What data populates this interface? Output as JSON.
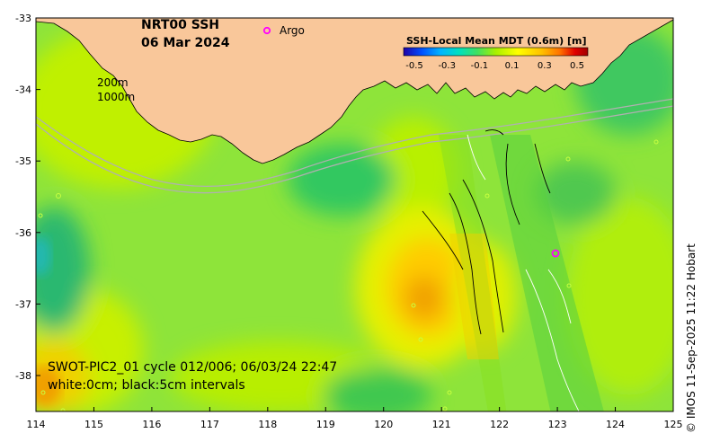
{
  "map": {
    "title": "NRT00 SSH",
    "date": "06 Mar 2024",
    "legend_marker_label": "Argo",
    "colorbar": {
      "title": "SSH-Local Mean MDT (0.6m) [m]",
      "ticks": [
        "-0.5",
        "-0.3",
        "-0.1",
        "0.1",
        "0.3",
        "0.5"
      ],
      "colors": [
        "#1e00a8",
        "#0050ff",
        "#00b4ff",
        "#00e0c0",
        "#40e060",
        "#a8f000",
        "#ffff00",
        "#ffc000",
        "#ff7000",
        "#e00000",
        "#a00000"
      ]
    },
    "isobath_labels": [
      "200m",
      "1000m"
    ],
    "swot_label": "SWOT-PIC2_01 cycle 012/006; 06/03/24 22:47",
    "contour_label": "white:0cm; black:5cm intervals",
    "credit": "© IMOS 11-Sep-2025 11:22 Hobart",
    "x_ticks": [
      "114",
      "115",
      "116",
      "117",
      "118",
      "119",
      "120",
      "121",
      "122",
      "123",
      "124",
      "125"
    ],
    "y_ticks": [
      "-33",
      "-34",
      "-35",
      "-36",
      "-37",
      "-38"
    ],
    "colors": {
      "land": "#f9c79a",
      "argo": "#ff00ff"
    }
  },
  "chart_data": {
    "type": "heatmap",
    "title": "NRT00 SSH",
    "subtitle": "06 Mar 2024",
    "x_range": [
      114,
      125
    ],
    "y_range": [
      -38.5,
      -33
    ],
    "colorbar_range": [
      -0.5,
      0.5
    ],
    "argo_floats": [
      {
        "lon": 123.0,
        "lat": -36.3
      }
    ]
  }
}
